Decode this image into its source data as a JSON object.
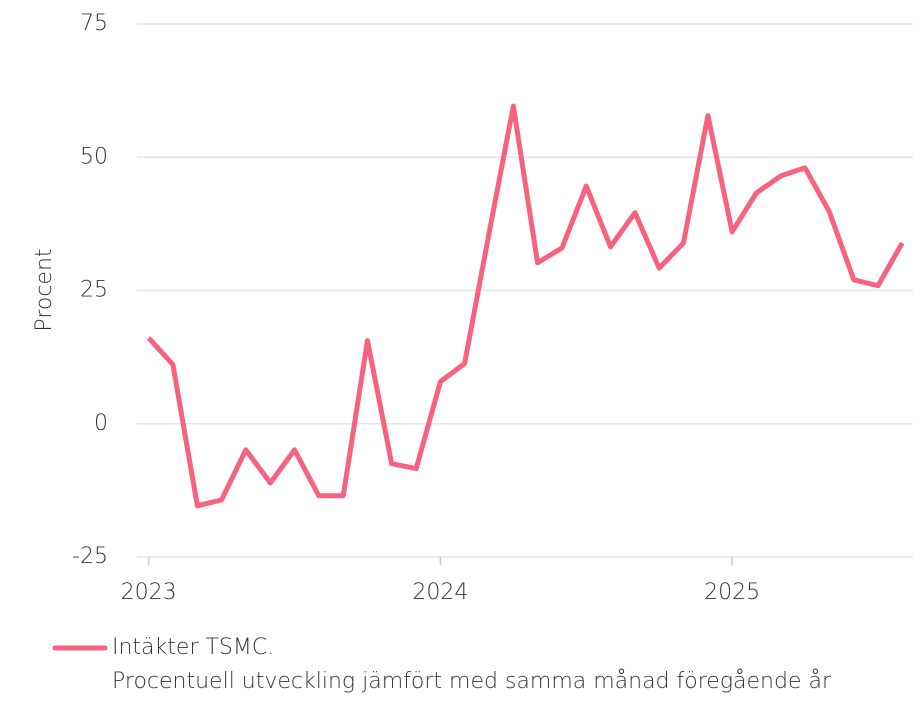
{
  "chart_data": {
    "type": "line",
    "y_label": "Procent",
    "x": [
      2023.0,
      2023.083,
      2023.167,
      2023.25,
      2023.333,
      2023.417,
      2023.5,
      2023.583,
      2023.667,
      2023.75,
      2023.833,
      2023.917,
      2024.0,
      2024.083,
      2024.167,
      2024.25,
      2024.333,
      2024.417,
      2024.5,
      2024.583,
      2024.667,
      2024.75,
      2024.833,
      2024.917,
      2025.0,
      2025.083,
      2025.167,
      2025.25,
      2025.333,
      2025.417,
      2025.5,
      2025.583
    ],
    "series": [
      {
        "name": "Intäkter TSMC.",
        "color": "#f7637f",
        "values": [
          16.1,
          11.1,
          -15.4,
          -14.3,
          -4.9,
          -11.1,
          -4.9,
          -13.5,
          -13.5,
          15.6,
          -7.5,
          -8.4,
          7.9,
          11.3,
          35.8,
          59.6,
          30.2,
          33.0,
          44.6,
          33.2,
          39.6,
          29.2,
          33.9,
          57.8,
          36.0,
          43.3,
          46.5,
          48.0,
          39.8,
          27.0,
          25.9,
          33.9
        ]
      }
    ],
    "legend_caption": "Procentuell utveckling jämfört med samma månad föregående år",
    "xlim": [
      2022.96,
      2025.62
    ],
    "xticks": [
      2023,
      2024,
      2025
    ],
    "ylim": [
      -25,
      75
    ],
    "yticks": [
      -25,
      0,
      25,
      50,
      75
    ],
    "grid": true
  }
}
